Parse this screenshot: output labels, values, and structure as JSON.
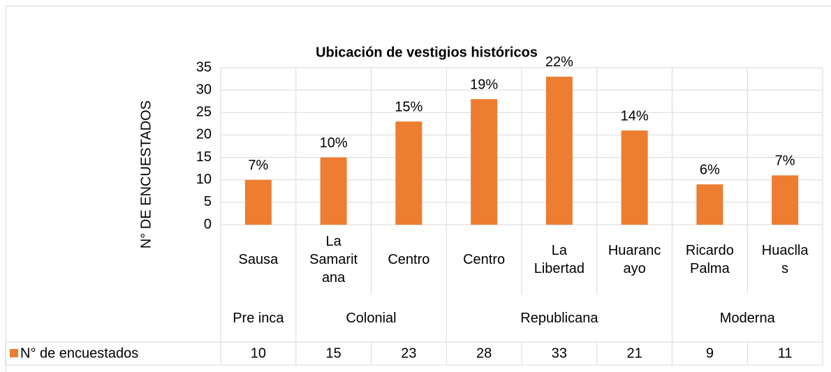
{
  "chart_data": {
    "type": "bar",
    "title": "Ubicación de vestigios históricos",
    "y_label": "N° DE ENCUESTADOS",
    "categories": [
      "Sausa",
      "La Samaritana",
      "Centro",
      "Centro",
      "La Libertad",
      "Huarancayo",
      "Ricardo Palma",
      "Huacllas"
    ],
    "groups": [
      {
        "name": "Pre inca",
        "span": 1
      },
      {
        "name": "Colonial",
        "span": 2
      },
      {
        "name": "Republicana",
        "span": 3
      },
      {
        "name": "Moderna",
        "span": 2
      }
    ],
    "series": [
      {
        "name": "N° de encuestados",
        "color": "#ed7d31",
        "values": [
          10,
          15,
          23,
          28,
          33,
          21,
          9,
          11
        ]
      }
    ],
    "data_labels": [
      "7%",
      "10%",
      "15%",
      "19%",
      "22%",
      "14%",
      "6%",
      "7%"
    ],
    "ylim": [
      0,
      35
    ],
    "yticks": [
      0,
      5,
      10,
      15,
      20,
      25,
      30,
      35
    ],
    "grid": true
  }
}
